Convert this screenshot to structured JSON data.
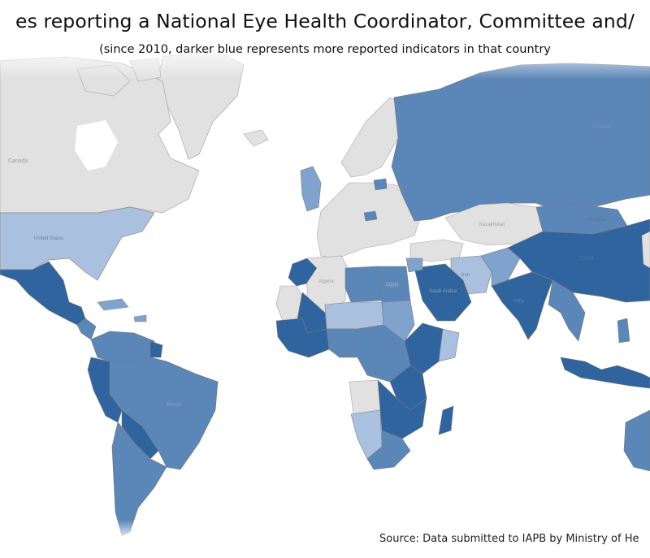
{
  "header": {
    "title": "es reporting a National Eye Health Coordinator, Committee and/",
    "subtitle": "(since 2010, darker blue represents more reported indicators in that country"
  },
  "footer": {
    "source": "Source: Data submitted to IAPB by Ministry of He"
  },
  "map": {
    "colors": {
      "no_data": "#e1e1e1",
      "level_1": "#a9c1de",
      "level_2": "#7fa3cc",
      "level_3": "#5a86b8",
      "level_4": "#2f649e",
      "ocean": "#ffffff",
      "border": "#9a9a9a"
    },
    "labels": {
      "russia": "Russia",
      "mongolia": "Mongolia",
      "china": "China",
      "algeria": "Algeria",
      "egypt": "Egypt",
      "saudi": "Saudi Arabia",
      "iran": "Iran",
      "kazakhstan": "Kazakhstan",
      "canada": "Canada",
      "us": "United States",
      "brazil": "Brazil",
      "india": "India"
    }
  }
}
